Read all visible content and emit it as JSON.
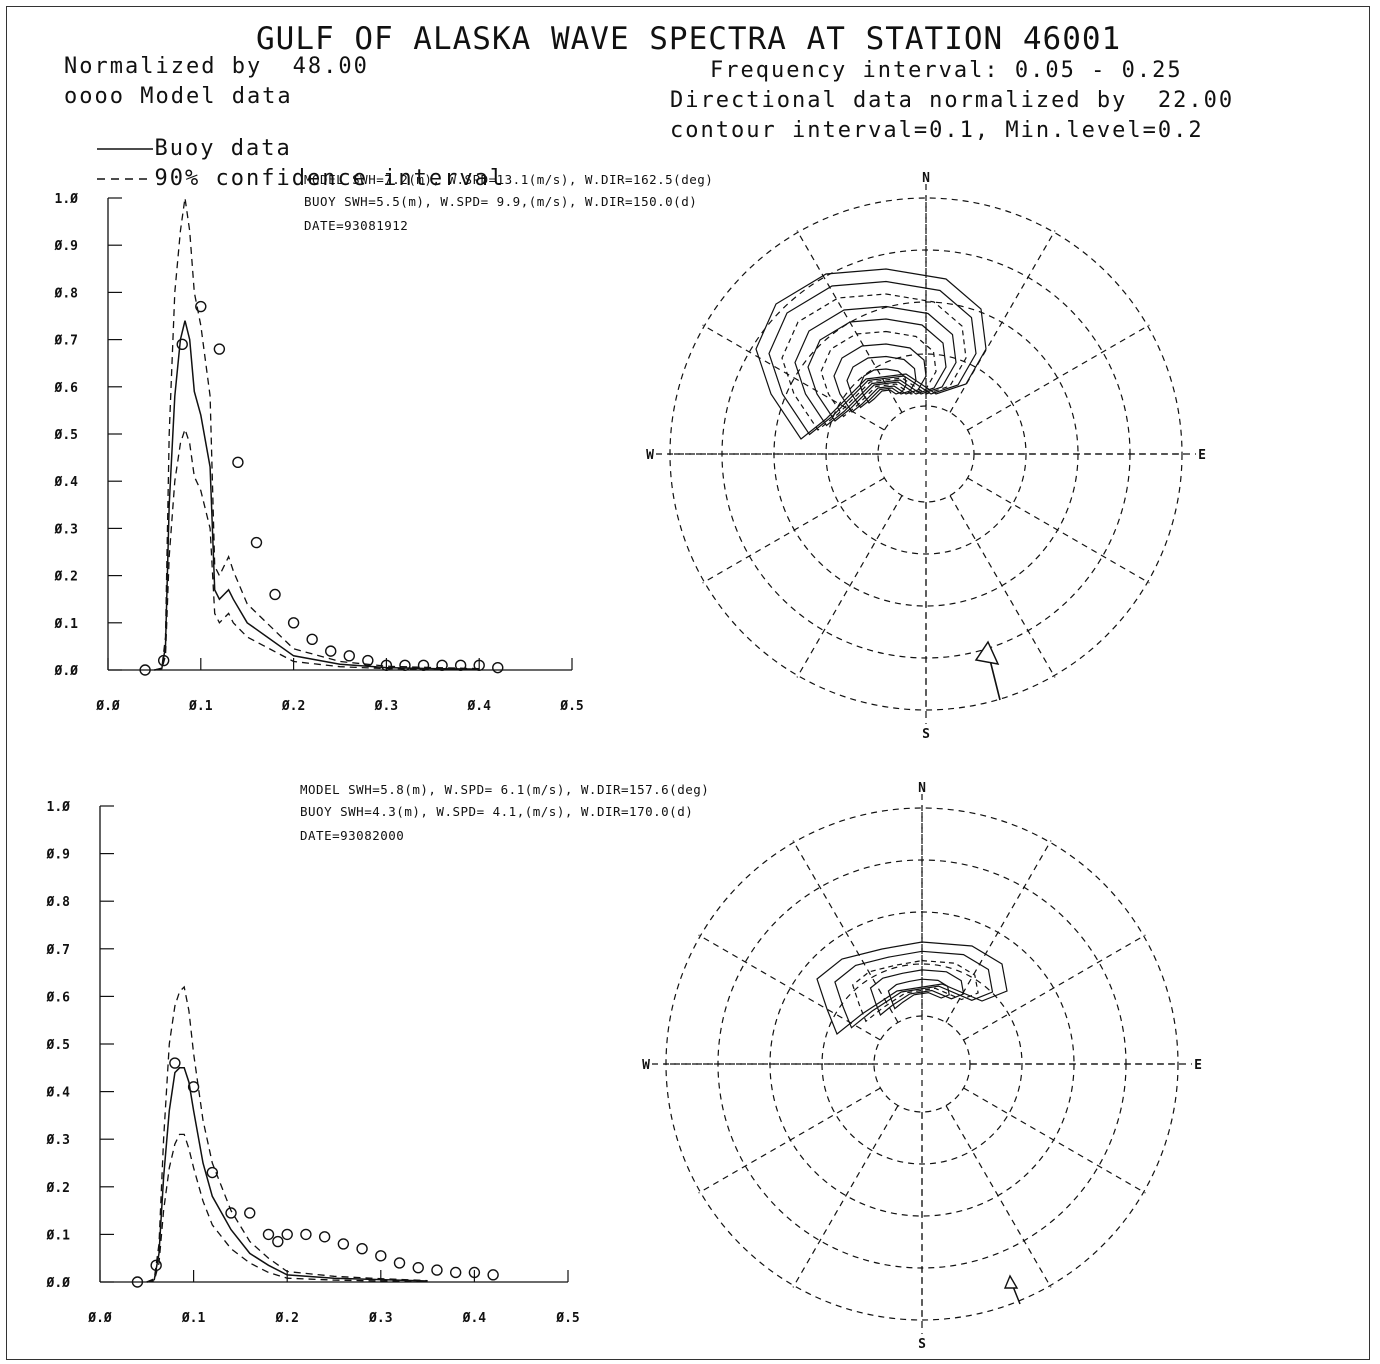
{
  "header": {
    "title": "GULF OF ALASKA WAVE SPECTRA AT STATION 46001",
    "normalized_by": "Normalized by  48.00",
    "legend_model": "oooo Model data",
    "legend_buoy": "Buoy data",
    "legend_ci": "90% confidence interval",
    "freq_interval": "Frequency interval: 0.05 - 0.25",
    "dir_normalized": "Directional data normalized by  22.00",
    "contour_info": "contour interval=0.1, Min.level=0.2"
  },
  "panels": [
    {
      "model_line": "MODEL SWH=7.2(m), W.SPD=13.1(m/s), W.DIR=162.5(deg)",
      "buoy_line": "BUOY SWH=5.5(m), W.SPD= 9.9,(m/s), W.DIR=150.0(d)",
      "date": "DATE=93081912"
    },
    {
      "model_line": "MODEL SWH=5.8(m), W.SPD= 6.1(m/s), W.DIR=157.6(deg)",
      "buoy_line": "BUOY SWH=4.3(m), W.SPD= 4.1,(m/s), W.DIR=170.0(d)",
      "date": "DATE=93082000"
    }
  ],
  "compass": {
    "n": "N",
    "s": "S",
    "e": "E",
    "w": "W"
  },
  "chart_data": [
    {
      "type": "line",
      "x_ticks": [
        "0.0",
        "0.1",
        "0.2",
        "0.3",
        "0.4",
        "0.5"
      ],
      "y_ticks": [
        "0.0",
        "0.1",
        "0.2",
        "0.3",
        "0.4",
        "0.5",
        "0.6",
        "0.7",
        "0.8",
        "0.9",
        "1.0"
      ],
      "xlim": [
        0,
        0.5
      ],
      "ylim": [
        0,
        1
      ],
      "model_points": [
        [
          0.04,
          0.0
        ],
        [
          0.06,
          0.02
        ],
        [
          0.08,
          0.69
        ],
        [
          0.1,
          0.77
        ],
        [
          0.12,
          0.68
        ],
        [
          0.14,
          0.44
        ],
        [
          0.16,
          0.27
        ],
        [
          0.18,
          0.16
        ],
        [
          0.2,
          0.1
        ],
        [
          0.22,
          0.065
        ],
        [
          0.24,
          0.04
        ],
        [
          0.26,
          0.03
        ],
        [
          0.28,
          0.02
        ],
        [
          0.3,
          0.01
        ],
        [
          0.32,
          0.01
        ],
        [
          0.34,
          0.01
        ],
        [
          0.36,
          0.01
        ],
        [
          0.38,
          0.01
        ],
        [
          0.4,
          0.01
        ],
        [
          0.42,
          0.005
        ]
      ],
      "buoy": [
        [
          0.05,
          0
        ],
        [
          0.058,
          0.003
        ],
        [
          0.062,
          0.05
        ],
        [
          0.066,
          0.35
        ],
        [
          0.072,
          0.58
        ],
        [
          0.078,
          0.7
        ],
        [
          0.083,
          0.74
        ],
        [
          0.088,
          0.7
        ],
        [
          0.093,
          0.59
        ],
        [
          0.1,
          0.54
        ],
        [
          0.11,
          0.43
        ],
        [
          0.115,
          0.17
        ],
        [
          0.12,
          0.15
        ],
        [
          0.125,
          0.16
        ],
        [
          0.13,
          0.17
        ],
        [
          0.135,
          0.15
        ],
        [
          0.15,
          0.1
        ],
        [
          0.2,
          0.03
        ],
        [
          0.25,
          0.012
        ],
        [
          0.3,
          0.005
        ],
        [
          0.35,
          0.003
        ],
        [
          0.4,
          0.002
        ]
      ],
      "ci_upper": [
        [
          0.05,
          0
        ],
        [
          0.058,
          0.004
        ],
        [
          0.062,
          0.07
        ],
        [
          0.066,
          0.5
        ],
        [
          0.072,
          0.8
        ],
        [
          0.078,
          0.93
        ],
        [
          0.083,
          1.0
        ],
        [
          0.088,
          0.93
        ],
        [
          0.093,
          0.8
        ],
        [
          0.1,
          0.73
        ],
        [
          0.11,
          0.58
        ],
        [
          0.115,
          0.22
        ],
        [
          0.12,
          0.2
        ],
        [
          0.125,
          0.22
        ],
        [
          0.13,
          0.24
        ],
        [
          0.135,
          0.21
        ],
        [
          0.15,
          0.14
        ],
        [
          0.2,
          0.045
        ],
        [
          0.25,
          0.018
        ],
        [
          0.3,
          0.008
        ],
        [
          0.35,
          0.005
        ],
        [
          0.4,
          0.003
        ]
      ],
      "ci_lower": [
        [
          0.05,
          0
        ],
        [
          0.058,
          0.002
        ],
        [
          0.062,
          0.03
        ],
        [
          0.066,
          0.24
        ],
        [
          0.072,
          0.4
        ],
        [
          0.078,
          0.48
        ],
        [
          0.083,
          0.51
        ],
        [
          0.088,
          0.48
        ],
        [
          0.093,
          0.41
        ],
        [
          0.1,
          0.38
        ],
        [
          0.11,
          0.3
        ],
        [
          0.115,
          0.12
        ],
        [
          0.12,
          0.1
        ],
        [
          0.125,
          0.11
        ],
        [
          0.13,
          0.12
        ],
        [
          0.135,
          0.1
        ],
        [
          0.15,
          0.07
        ],
        [
          0.2,
          0.018
        ],
        [
          0.25,
          0.007
        ],
        [
          0.3,
          0.003
        ],
        [
          0.35,
          0.002
        ],
        [
          0.4,
          0.001
        ]
      ]
    },
    {
      "type": "line",
      "x_ticks": [
        "0.0",
        "0.1",
        "0.2",
        "0.3",
        "0.4",
        "0.5"
      ],
      "y_ticks": [
        "0.0",
        "0.1",
        "0.2",
        "0.3",
        "0.4",
        "0.5",
        "0.6",
        "0.7",
        "0.8",
        "0.9",
        "1.0"
      ],
      "xlim": [
        0,
        0.5
      ],
      "ylim": [
        0,
        1
      ],
      "model_points": [
        [
          0.04,
          0.0
        ],
        [
          0.06,
          0.035
        ],
        [
          0.08,
          0.46
        ],
        [
          0.1,
          0.41
        ],
        [
          0.12,
          0.23
        ],
        [
          0.14,
          0.145
        ],
        [
          0.16,
          0.145
        ],
        [
          0.18,
          0.1
        ],
        [
          0.19,
          0.085
        ],
        [
          0.2,
          0.1
        ],
        [
          0.22,
          0.1
        ],
        [
          0.24,
          0.095
        ],
        [
          0.26,
          0.08
        ],
        [
          0.28,
          0.07
        ],
        [
          0.3,
          0.055
        ],
        [
          0.32,
          0.04
        ],
        [
          0.34,
          0.03
        ],
        [
          0.36,
          0.025
        ],
        [
          0.38,
          0.02
        ],
        [
          0.4,
          0.02
        ],
        [
          0.42,
          0.015
        ]
      ],
      "buoy": [
        [
          0.05,
          0
        ],
        [
          0.058,
          0.005
        ],
        [
          0.063,
          0.06
        ],
        [
          0.068,
          0.22
        ],
        [
          0.074,
          0.36
        ],
        [
          0.08,
          0.44
        ],
        [
          0.085,
          0.45
        ],
        [
          0.09,
          0.45
        ],
        [
          0.095,
          0.42
        ],
        [
          0.1,
          0.36
        ],
        [
          0.11,
          0.25
        ],
        [
          0.12,
          0.18
        ],
        [
          0.14,
          0.11
        ],
        [
          0.16,
          0.06
        ],
        [
          0.18,
          0.035
        ],
        [
          0.2,
          0.015
        ],
        [
          0.25,
          0.008
        ],
        [
          0.3,
          0.005
        ],
        [
          0.35,
          0.002
        ]
      ],
      "ci_upper": [
        [
          0.05,
          0
        ],
        [
          0.058,
          0.007
        ],
        [
          0.063,
          0.08
        ],
        [
          0.068,
          0.3
        ],
        [
          0.074,
          0.5
        ],
        [
          0.08,
          0.58
        ],
        [
          0.085,
          0.61
        ],
        [
          0.09,
          0.62
        ],
        [
          0.095,
          0.57
        ],
        [
          0.1,
          0.48
        ],
        [
          0.11,
          0.34
        ],
        [
          0.12,
          0.25
        ],
        [
          0.14,
          0.15
        ],
        [
          0.16,
          0.085
        ],
        [
          0.18,
          0.05
        ],
        [
          0.2,
          0.022
        ],
        [
          0.25,
          0.012
        ],
        [
          0.3,
          0.007
        ],
        [
          0.35,
          0.003
        ]
      ],
      "ci_lower": [
        [
          0.05,
          0
        ],
        [
          0.058,
          0.003
        ],
        [
          0.063,
          0.04
        ],
        [
          0.068,
          0.15
        ],
        [
          0.074,
          0.24
        ],
        [
          0.08,
          0.29
        ],
        [
          0.085,
          0.31
        ],
        [
          0.09,
          0.31
        ],
        [
          0.095,
          0.28
        ],
        [
          0.1,
          0.24
        ],
        [
          0.11,
          0.17
        ],
        [
          0.12,
          0.12
        ],
        [
          0.14,
          0.07
        ],
        [
          0.16,
          0.04
        ],
        [
          0.18,
          0.02
        ],
        [
          0.2,
          0.008
        ],
        [
          0.25,
          0.004
        ],
        [
          0.3,
          0.002
        ],
        [
          0.35,
          0.001
        ]
      ]
    }
  ]
}
